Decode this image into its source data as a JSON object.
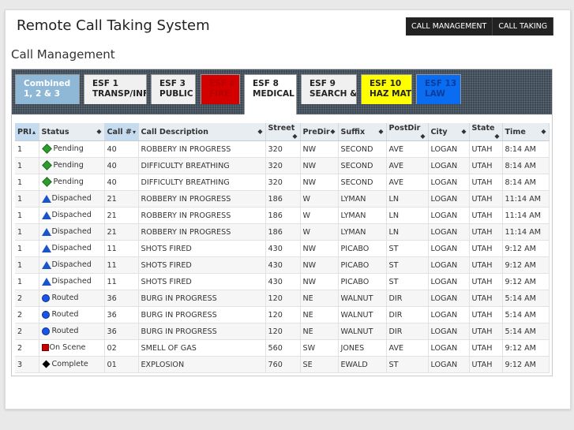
{
  "header": {
    "app_title": "Remote Call Taking System",
    "nav": [
      "CALL MANAGEMENT",
      "CALL TAKING"
    ]
  },
  "section_title": "Call Management",
  "tabs": [
    {
      "line1": "Combined",
      "line2": "1, 2 & 3",
      "bg": "#8fb7d6",
      "fg": "#ffffff",
      "active": false
    },
    {
      "line1": "ESF 1",
      "line2": "TRANSP/INFR",
      "bg": "#f0f0f0",
      "fg": "#222222",
      "active": false
    },
    {
      "line1": "ESF 3",
      "line2": "PUBLIC",
      "bg": "#f0f0f0",
      "fg": "#222222",
      "active": false
    },
    {
      "line1": "ESF 4",
      "line2": "FIRE",
      "bg": "#d40000",
      "fg": "#b80000",
      "active": false
    },
    {
      "line1": "ESF 8",
      "line2": "MEDICAL",
      "bg": "#ffffff",
      "fg": "#222222",
      "active": true
    },
    {
      "line1": "ESF 9",
      "line2": "SEARCH &",
      "bg": "#f0f0f0",
      "fg": "#222222",
      "active": false
    },
    {
      "line1": "ESF 10",
      "line2": "HAZ MAT",
      "bg": "#ffff00",
      "fg": "#222222",
      "active": false
    },
    {
      "line1": "ESF 13",
      "line2": "LAW",
      "bg": "#0a6cf0",
      "fg": "#0a3c9c",
      "active": false
    }
  ],
  "columns": [
    {
      "label": "PRI",
      "sort": "▴",
      "sorted": true
    },
    {
      "label": "Status",
      "sort": "◆"
    },
    {
      "label": "Call #",
      "sort": "▾",
      "sorted": true
    },
    {
      "label": "Call Description",
      "sort": "◆"
    },
    {
      "label": "Street",
      "sort": "◆"
    },
    {
      "label": "PreDir",
      "sort": "◆"
    },
    {
      "label": "Suffix",
      "sort": "◆"
    },
    {
      "label": "PostDir",
      "sort": "◆"
    },
    {
      "label": "City",
      "sort": "◆"
    },
    {
      "label": "State",
      "sort": "◆"
    },
    {
      "label": "Time",
      "sort": "◆"
    }
  ],
  "rows": [
    {
      "pri": "1",
      "status_icon": "pending-icon",
      "status": "Pending",
      "call": "40",
      "desc": "ROBBERY IN PROGRESS",
      "street": "320",
      "predir": "NW",
      "suffix": "SECOND",
      "postdir": "AVE",
      "city": "LOGAN",
      "state": "UTAH",
      "time": "8:14 AM"
    },
    {
      "pri": "1",
      "status_icon": "pending-icon",
      "status": "Pending",
      "call": "40",
      "desc": "DIFFICULTY BREATHING",
      "street": "320",
      "predir": "NW",
      "suffix": "SECOND",
      "postdir": "AVE",
      "city": "LOGAN",
      "state": "UTAH",
      "time": "8:14 AM"
    },
    {
      "pri": "1",
      "status_icon": "pending-icon",
      "status": "Pending",
      "call": "40",
      "desc": "DIFFICULTY BREATHING",
      "street": "320",
      "predir": "NW",
      "suffix": "SECOND",
      "postdir": "AVE",
      "city": "LOGAN",
      "state": "UTAH",
      "time": "8:14 AM"
    },
    {
      "pri": "1",
      "status_icon": "dispatched-icon",
      "status": "Dispached",
      "call": "21",
      "desc": "ROBBERY IN PROGRESS",
      "street": "186",
      "predir": "W",
      "suffix": "LYMAN",
      "postdir": "LN",
      "city": "LOGAN",
      "state": "UTAH",
      "time": "11:14 AM"
    },
    {
      "pri": "1",
      "status_icon": "dispatched-icon",
      "status": "Dispached",
      "call": "21",
      "desc": "ROBBERY IN PROGRESS",
      "street": "186",
      "predir": "W",
      "suffix": "LYMAN",
      "postdir": "LN",
      "city": "LOGAN",
      "state": "UTAH",
      "time": "11:14 AM"
    },
    {
      "pri": "1",
      "status_icon": "dispatched-icon",
      "status": "Dispached",
      "call": "21",
      "desc": "ROBBERY IN PROGRESS",
      "street": "186",
      "predir": "W",
      "suffix": "LYMAN",
      "postdir": "LN",
      "city": "LOGAN",
      "state": "UTAH",
      "time": "11:14 AM"
    },
    {
      "pri": "1",
      "status_icon": "dispatched-icon",
      "status": "Dispached",
      "call": "11",
      "desc": "SHOTS FIRED",
      "street": "430",
      "predir": "NW",
      "suffix": "PICABO",
      "postdir": "ST",
      "city": "LOGAN",
      "state": "UTAH",
      "time": "9:12 AM"
    },
    {
      "pri": "1",
      "status_icon": "dispatched-icon",
      "status": "Dispached",
      "call": "11",
      "desc": "SHOTS FIRED",
      "street": "430",
      "predir": "NW",
      "suffix": "PICABO",
      "postdir": "ST",
      "city": "LOGAN",
      "state": "UTAH",
      "time": "9:12 AM"
    },
    {
      "pri": "1",
      "status_icon": "dispatched-icon",
      "status": "Dispached",
      "call": "11",
      "desc": "SHOTS FIRED",
      "street": "430",
      "predir": "NW",
      "suffix": "PICABO",
      "postdir": "ST",
      "city": "LOGAN",
      "state": "UTAH",
      "time": "9:12 AM"
    },
    {
      "pri": "2",
      "status_icon": "routed-icon",
      "status": "Routed",
      "call": "36",
      "desc": "BURG IN PROGRESS",
      "street": "120",
      "predir": "NE",
      "suffix": "WALNUT",
      "postdir": "DIR",
      "city": "LOGAN",
      "state": "UTAH",
      "time": "5:14 AM"
    },
    {
      "pri": "2",
      "status_icon": "routed-icon",
      "status": "Routed",
      "call": "36",
      "desc": "BURG IN PROGRESS",
      "street": "120",
      "predir": "NE",
      "suffix": "WALNUT",
      "postdir": "DIR",
      "city": "LOGAN",
      "state": "UTAH",
      "time": "5:14 AM"
    },
    {
      "pri": "2",
      "status_icon": "routed-icon",
      "status": "Routed",
      "call": "36",
      "desc": "BURG IN PROGRESS",
      "street": "120",
      "predir": "NE",
      "suffix": "WALNUT",
      "postdir": "DIR",
      "city": "LOGAN",
      "state": "UTAH",
      "time": "5:14 AM"
    },
    {
      "pri": "2",
      "status_icon": "on-scene-icon",
      "status": "On Scene",
      "call": "02",
      "desc": "SMELL OF GAS",
      "street": "560",
      "predir": "SW",
      "suffix": "JONES",
      "postdir": "AVE",
      "city": "LOGAN",
      "state": "UTAH",
      "time": "9:12 AM"
    },
    {
      "pri": "3",
      "status_icon": "complete-icon",
      "status": "Complete",
      "call": "01",
      "desc": "EXPLOSION",
      "street": "760",
      "predir": "SE",
      "suffix": "EWALD",
      "postdir": "ST",
      "city": "LOGAN",
      "state": "UTAH",
      "time": "9:12 AM"
    }
  ]
}
